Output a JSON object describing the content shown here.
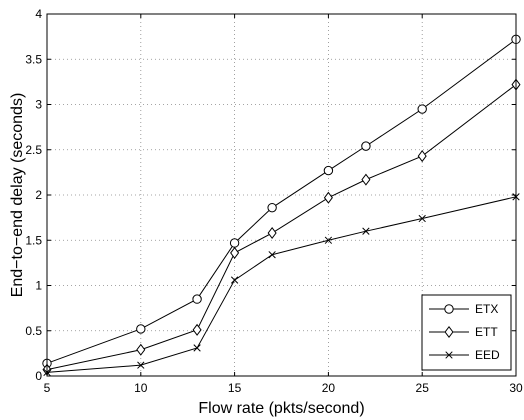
{
  "chart_data": {
    "type": "line",
    "title": "",
    "xlabel": "Flow rate (pkts/second)",
    "ylabel": "End−to−end delay (seconds)",
    "xlim": [
      5,
      30
    ],
    "ylim": [
      0,
      4
    ],
    "xticks": [
      "5",
      "10",
      "15",
      "20",
      "25",
      "30"
    ],
    "yticks": [
      "0",
      "0.5",
      "1",
      "1.5",
      "2",
      "2.5",
      "3",
      "3.5",
      "4"
    ],
    "grid": true,
    "legend_position": "bottom-right",
    "x": [
      5,
      10,
      13,
      15,
      17,
      20,
      22,
      25,
      30
    ],
    "series": [
      {
        "name": "ETX",
        "marker": "circle",
        "values": [
          0.14,
          0.52,
          0.85,
          1.47,
          1.86,
          2.27,
          2.54,
          2.95,
          3.72
        ]
      },
      {
        "name": "ETT",
        "marker": "diamond",
        "values": [
          0.07,
          0.29,
          0.51,
          1.36,
          1.58,
          1.97,
          2.17,
          2.43,
          3.22
        ]
      },
      {
        "name": "EED",
        "marker": "x",
        "values": [
          0.04,
          0.12,
          0.31,
          1.06,
          1.34,
          1.5,
          1.6,
          1.74,
          1.98
        ]
      }
    ],
    "colors": {
      "line": "#000000",
      "grid": "#888888"
    }
  }
}
